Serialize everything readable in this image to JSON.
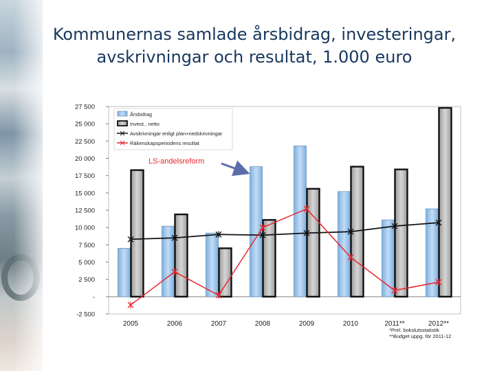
{
  "title": {
    "line1": "Kommunernas samlade årsbidrag, investeringar,",
    "line2": "avskrivningar och resultat, 1.000 euro"
  },
  "annotation": "LS-andelsreform",
  "footnotes": [
    "*Prel. bokslutsstatistik",
    "**Budget uppg. för 2011-12"
  ],
  "chart_data": {
    "type": "bar",
    "categories": [
      "2005",
      "2006",
      "2007",
      "2008",
      "2009",
      "2010",
      "2011**",
      "2012**"
    ],
    "ylim": [
      -2500,
      27500
    ],
    "y_ticks": [
      27500,
      25000,
      22500,
      20000,
      17500,
      15000,
      12500,
      10000,
      7500,
      5000,
      2500,
      0,
      -2500
    ],
    "y_tick_labels": [
      "27 500",
      "25 000",
      "22 500",
      "20 000",
      "17 500",
      "15 000",
      "12 500",
      "10 000",
      "7 500",
      "5 000",
      "2 500",
      "-",
      "-2 500"
    ],
    "legend_position": "top-left",
    "grid": false,
    "series": [
      {
        "name": "Årsbidrag",
        "type": "bar",
        "color": "#9dc3e6",
        "values": [
          7000,
          10200,
          9200,
          18800,
          21800,
          15200,
          11100,
          12700
        ]
      },
      {
        "name": "Invest., netto",
        "type": "bar",
        "color": "#bfbfbf",
        "values": [
          18300,
          11900,
          7000,
          11100,
          15600,
          18800,
          18400,
          27300
        ]
      },
      {
        "name": "Avskrivningar enligt plan+nedskrivningar",
        "type": "line",
        "color": "#111111",
        "values": [
          8300,
          8500,
          9000,
          8900,
          9200,
          9400,
          10200,
          10700
        ]
      },
      {
        "name": "Räkenskapsperiodens resultat",
        "type": "line",
        "color": "#e8262b",
        "values": [
          -1200,
          3600,
          200,
          10000,
          12700,
          5700,
          900,
          2100
        ]
      }
    ]
  }
}
